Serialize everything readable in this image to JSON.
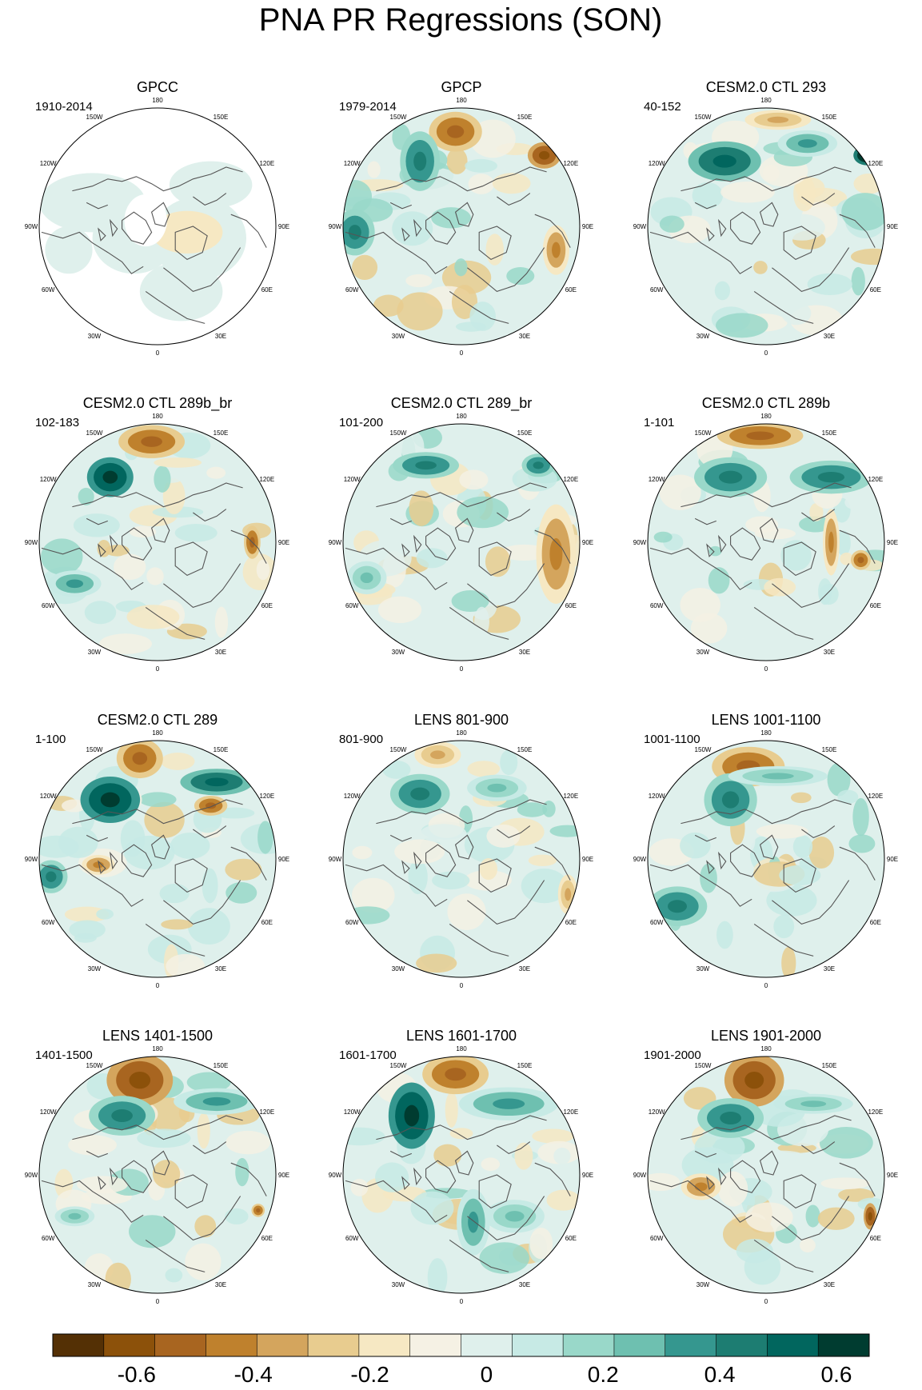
{
  "figure": {
    "title": "PNA PR Regressions (SON)"
  },
  "chart_data": {
    "type": "polar-stereographic-map-panels",
    "title": "PNA PR Regressions (SON)",
    "projection": "North Polar Stereographic",
    "longitude_labels": [
      "180",
      "150E",
      "120E",
      "90E",
      "60E",
      "30E",
      "0",
      "30W",
      "60W",
      "90W",
      "120W",
      "150W"
    ],
    "panels": [
      {
        "title": "GPCC",
        "years": "1910-2014",
        "land_only": true
      },
      {
        "title": "GPCP",
        "years": "1979-2014",
        "land_only": false
      },
      {
        "title": "CESM2.0 CTL 293",
        "years": "40-152",
        "land_only": false
      },
      {
        "title": "CESM2.0 CTL 289b_br",
        "years": "102-183",
        "land_only": false
      },
      {
        "title": "CESM2.0 CTL 289_br",
        "years": "101-200",
        "land_only": false
      },
      {
        "title": "CESM2.0 CTL 289b",
        "years": "1-101",
        "land_only": false
      },
      {
        "title": "CESM2.0 CTL 289",
        "years": "1-100",
        "land_only": false
      },
      {
        "title": "LENS 801-900",
        "years": "801-900",
        "land_only": false
      },
      {
        "title": "LENS 1001-1100",
        "years": "1001-1100",
        "land_only": false
      },
      {
        "title": "LENS 1401-1500",
        "years": "1401-1500",
        "land_only": false
      },
      {
        "title": "LENS 1601-1700",
        "years": "1601-1700",
        "land_only": false
      },
      {
        "title": "LENS 1901-2000",
        "years": "1901-2000",
        "land_only": false
      }
    ],
    "colorbar": {
      "boundaries": [
        -0.7,
        -0.6,
        -0.5,
        -0.4,
        -0.3,
        -0.2,
        -0.1,
        0,
        0.1,
        0.2,
        0.3,
        0.4,
        0.5,
        0.6,
        0.7
      ],
      "tick_values": [
        -0.6,
        -0.4,
        -0.2,
        0,
        0.2,
        0.4,
        0.6
      ],
      "tick_labels": [
        "-0.6",
        "-0.4",
        "-0.2",
        "0",
        "0.2",
        "0.4",
        "0.6"
      ],
      "colors": [
        "#543005",
        "#8c510a",
        "#a86520",
        "#bf812d",
        "#d4a55d",
        "#e8cc8f",
        "#f6e8c3",
        "#f5f1e4",
        "#dff0ec",
        "#c7eae5",
        "#99d8c9",
        "#6ec0b0",
        "#35978f",
        "#1d7d72",
        "#01665e",
        "#003c30"
      ]
    }
  }
}
